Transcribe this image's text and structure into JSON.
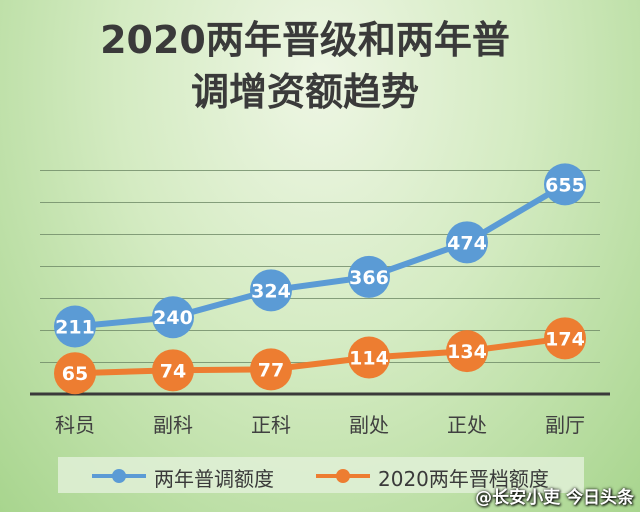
{
  "chart_data": {
    "type": "line",
    "title": [
      "2020两年晋级和两年普",
      "调增资额趋势"
    ],
    "categories": [
      "科员",
      "副科",
      "正科",
      "副处",
      "正处",
      "副厅"
    ],
    "series": [
      {
        "name": "两年普调额度",
        "values": [
          211,
          240,
          324,
          366,
          474,
          655
        ],
        "color": "#5b9bd5"
      },
      {
        "name": "2020两年晋档额度",
        "values": [
          65,
          74,
          77,
          114,
          134,
          174
        ],
        "color": "#ed7d31"
      }
    ],
    "ylim": [
      0,
      700
    ],
    "grid": true,
    "legend_position": "bottom",
    "data_labels": true
  },
  "watermark": "@长安小吏  今日头条"
}
